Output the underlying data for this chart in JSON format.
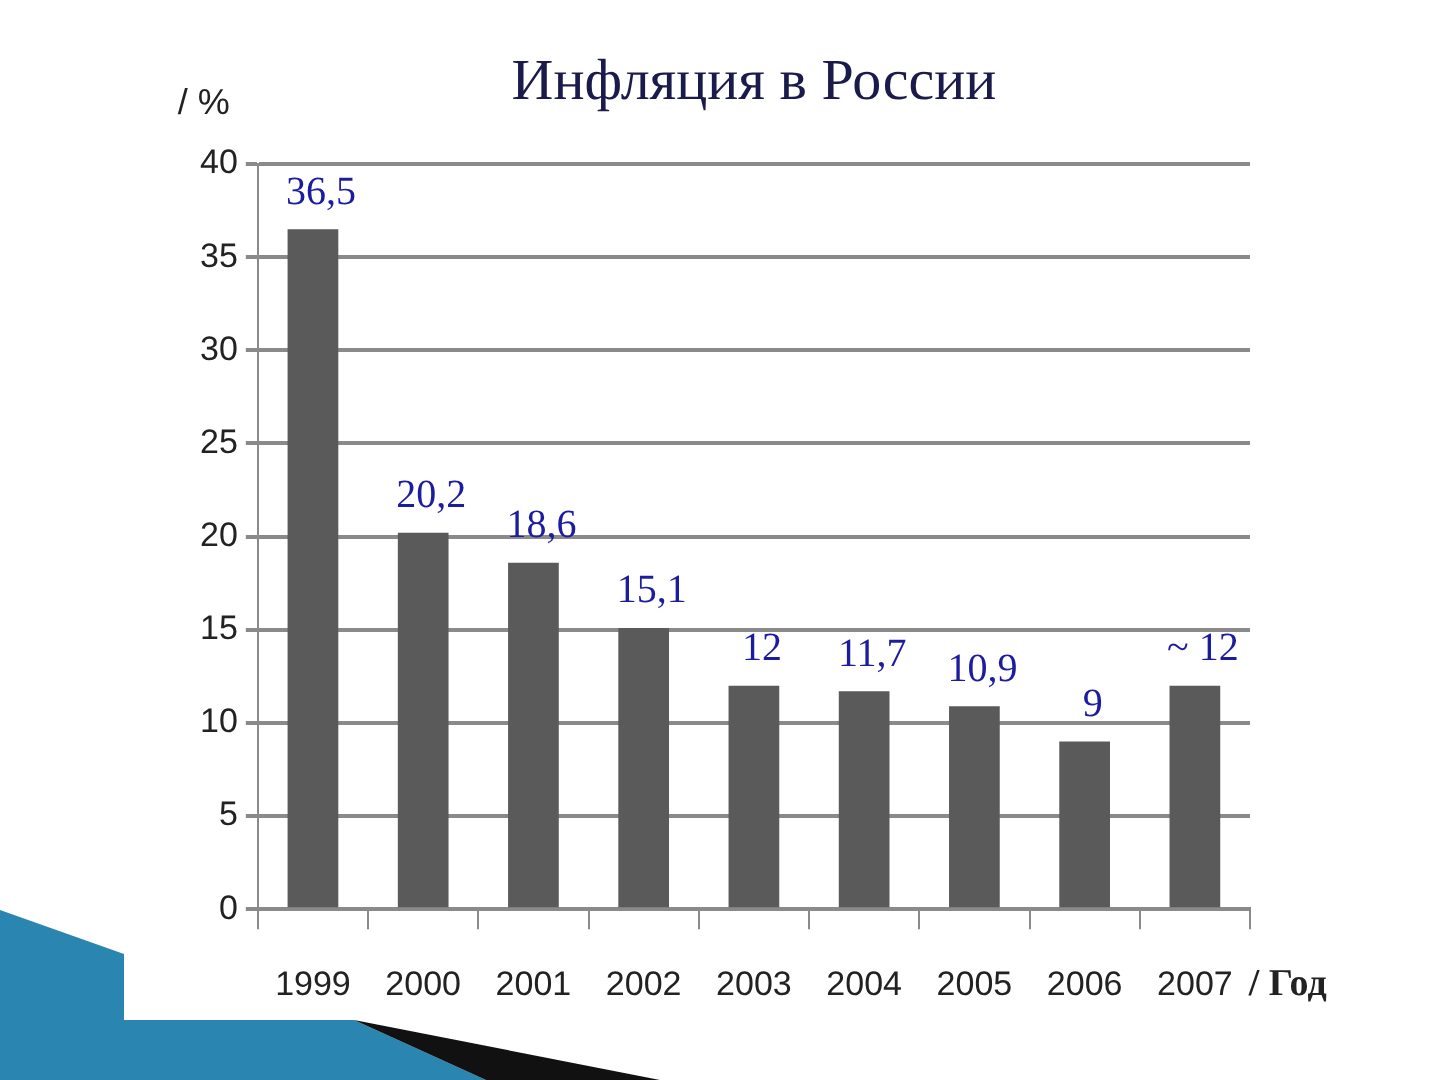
{
  "chart_data": {
    "type": "bar",
    "title": "Инфляция в России",
    "xlabel": "/ Год",
    "ylabel": "/ %",
    "categories": [
      "1999",
      "2000",
      "2001",
      "2002",
      "2003",
      "2004",
      "2005",
      "2006",
      "2007"
    ],
    "values": [
      36.5,
      20.2,
      18.6,
      15.1,
      12,
      11.7,
      10.9,
      9,
      12
    ],
    "color": "#5a5a5a",
    "value_labels": [
      "36,5",
      "20,2",
      "18,6",
      "15,1",
      "12",
      "11,7",
      "10,9",
      "9",
      "~ 12"
    ],
    "ylim": [
      0,
      40
    ],
    "yticks": [
      0,
      5,
      10,
      15,
      20,
      25,
      30,
      35,
      40
    ],
    "grid": "y"
  }
}
